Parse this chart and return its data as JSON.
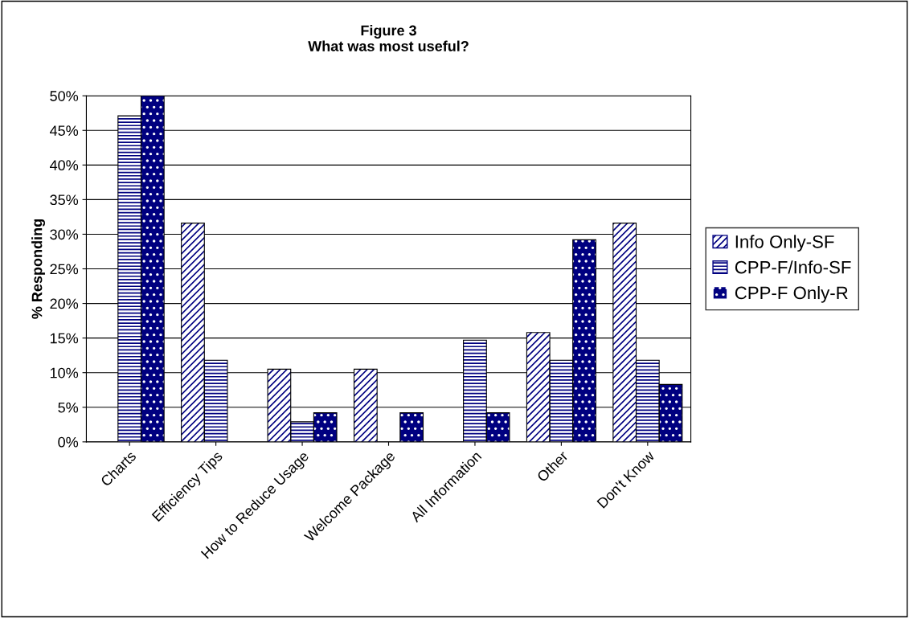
{
  "chart_data": {
    "type": "bar",
    "title": "Figure 3\nWhat was most useful?",
    "ylabel": "% Responding",
    "categories": [
      "Charts",
      "Efficiency Tips",
      "How to Reduce Usage",
      "Welcome Package",
      "All Information",
      "Other",
      "Don't Know"
    ],
    "series": [
      {
        "name": "Info Only-SF",
        "color": "#ffffff",
        "values": [
          0,
          31.6,
          10.5,
          10.5,
          0,
          15.8,
          31.6
        ]
      },
      {
        "name": "CPP-F/Info-SF",
        "color": "#ffffff",
        "values": [
          47.1,
          11.8,
          2.9,
          0,
          14.7,
          11.8,
          11.8
        ]
      },
      {
        "name": "CPP-F Only-R",
        "color": "#000080",
        "values": [
          50,
          0,
          4.2,
          4.2,
          4.2,
          29.2,
          8.3
        ]
      }
    ],
    "ylim": [
      0,
      50
    ],
    "yticks": [
      {
        "value": 0,
        "label": "0%"
      },
      {
        "value": 5,
        "label": "5%"
      },
      {
        "value": 10,
        "label": "10%"
      },
      {
        "value": 15,
        "label": "15%"
      },
      {
        "value": 20,
        "label": "20%"
      },
      {
        "value": 25,
        "label": "25%"
      },
      {
        "value": 30,
        "label": "30%"
      },
      {
        "value": 35,
        "label": "35%"
      },
      {
        "value": 40,
        "label": "40%"
      },
      {
        "value": 45,
        "label": "45%"
      },
      {
        "value": 50,
        "label": "50%"
      }
    ],
    "grid": "y",
    "legend": "right"
  }
}
